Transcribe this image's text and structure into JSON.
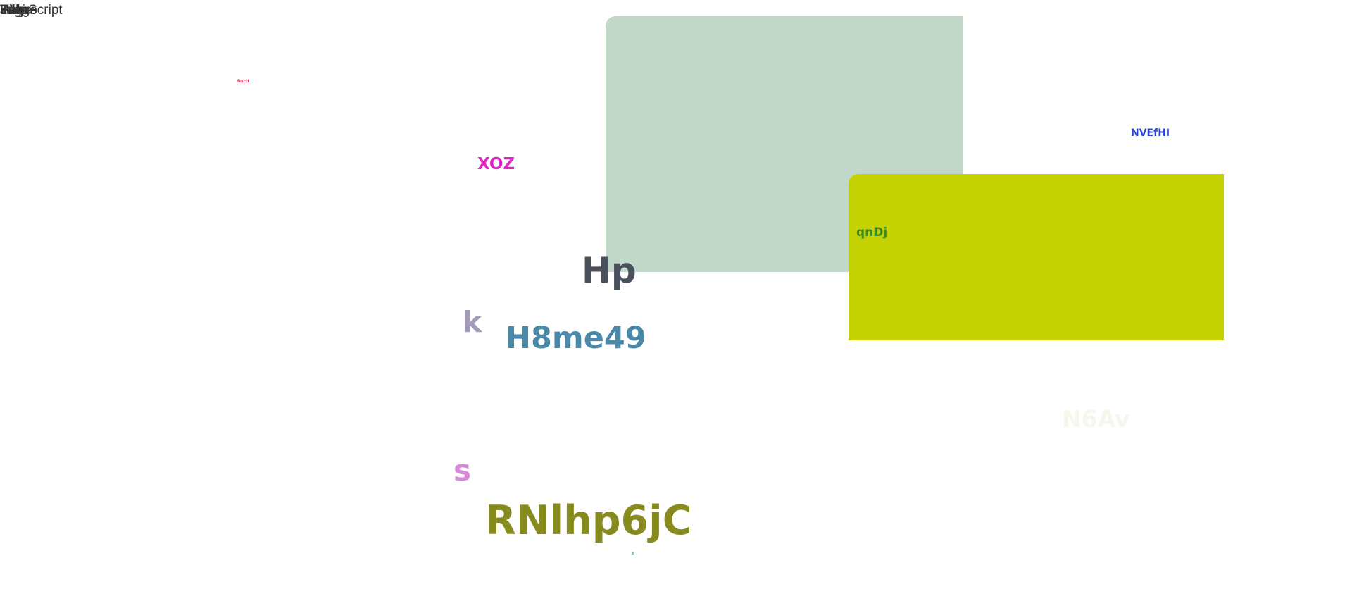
{
  "top_left_stack": [
    "Wiki",
    "JavaScript",
    "Help",
    "Image",
    "Page",
    "Site",
    "Tag"
  ],
  "colors": {
    "sage_block": "#c1d8c8",
    "lime_block": "#c4d204"
  },
  "labels": {
    "tiny_red": "Dsrtt",
    "xoz": "XOZ",
    "nvefhi": "NVEfHI",
    "qndj": "qnDj",
    "hp": "Hp",
    "k": "k",
    "h8me49": "H8me49",
    "n6av": "N6Av",
    "s": "s",
    "rnlhp6jc": "RNlhp6jC",
    "x": "x"
  }
}
